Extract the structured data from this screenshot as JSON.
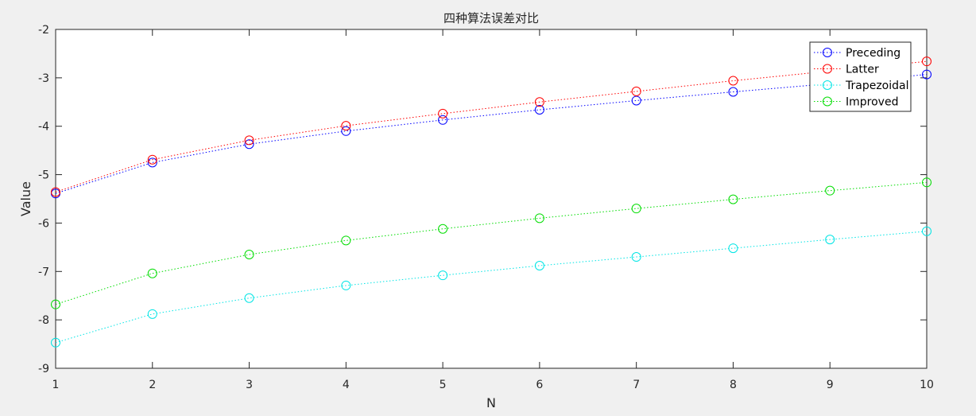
{
  "chart_data": {
    "type": "line",
    "title": "四种算法误差对比",
    "xlabel": "N",
    "ylabel": "Value",
    "xlim": [
      1,
      10
    ],
    "ylim": [
      -9,
      -2
    ],
    "x": [
      1,
      2,
      3,
      4,
      5,
      6,
      7,
      8,
      9,
      10
    ],
    "xticks": [
      "1",
      "2",
      "3",
      "4",
      "5",
      "6",
      "7",
      "8",
      "9",
      "10"
    ],
    "yticks": [
      "-9",
      "-8",
      "-7",
      "-6",
      "-5",
      "-4",
      "-3",
      "-2"
    ],
    "grid": false,
    "legend_position": "top-right",
    "series": [
      {
        "name": "Preceding",
        "color": "#0000ff",
        "marker": "circle",
        "line": "dotted",
        "values": [
          -5.39,
          -4.75,
          -4.37,
          -4.1,
          -3.87,
          -3.66,
          -3.47,
          -3.29,
          -3.12,
          -2.93
        ]
      },
      {
        "name": "Latter",
        "color": "#ff0000",
        "marker": "circle",
        "line": "dotted",
        "values": [
          -5.36,
          -4.69,
          -4.29,
          -3.99,
          -3.74,
          -3.5,
          -3.28,
          -3.06,
          -2.86,
          -2.66
        ]
      },
      {
        "name": "Trapezoidal",
        "color": "#00e5e5",
        "marker": "circle",
        "line": "dotted",
        "values": [
          -8.47,
          -7.88,
          -7.55,
          -7.29,
          -7.08,
          -6.88,
          -6.7,
          -6.52,
          -6.34,
          -6.17
        ]
      },
      {
        "name": "Improved",
        "color": "#00dd00",
        "marker": "circle",
        "line": "dotted",
        "values": [
          -7.68,
          -7.04,
          -6.65,
          -6.36,
          -6.12,
          -5.9,
          -5.7,
          -5.51,
          -5.33,
          -5.16
        ]
      }
    ]
  }
}
